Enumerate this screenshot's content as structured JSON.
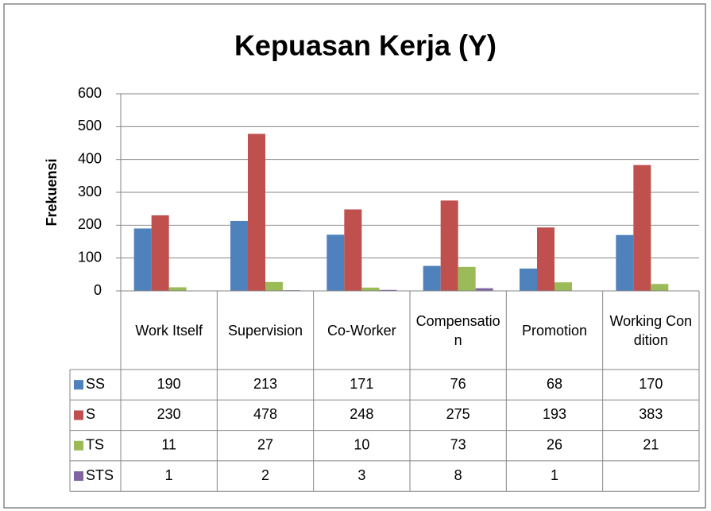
{
  "chart_data": {
    "type": "bar",
    "title": "Kepuasan Kerja (Y)",
    "y_label": "Frekuensi",
    "categories": [
      "Work Itself",
      "Supervision",
      "Co-Worker",
      "Compensation",
      "Promotion",
      "Working Condition"
    ],
    "series": [
      {
        "name": "SS",
        "color": "#4f81bd",
        "values": [
          190,
          213,
          171,
          76,
          68,
          170
        ]
      },
      {
        "name": "S",
        "color": "#c0504d",
        "values": [
          230,
          478,
          248,
          275,
          193,
          383
        ]
      },
      {
        "name": "TS",
        "color": "#9bbb59",
        "values": [
          11,
          27,
          10,
          73,
          26,
          21
        ]
      },
      {
        "name": "STS",
        "color": "#8064a2",
        "values": [
          1,
          2,
          3,
          8,
          1,
          null
        ]
      }
    ],
    "ylim": [
      0,
      600
    ],
    "yticks": [
      0,
      100,
      200,
      300,
      400,
      500,
      600
    ],
    "grid": true,
    "data_table": true
  }
}
